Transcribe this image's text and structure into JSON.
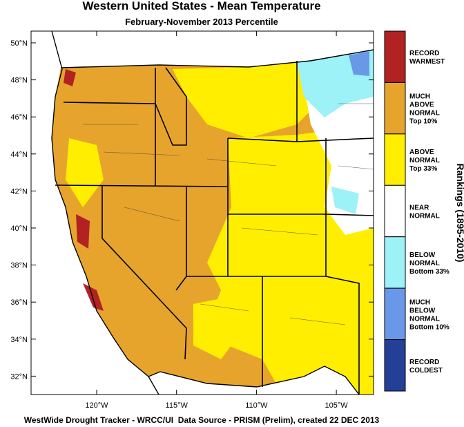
{
  "header": {
    "title": "Western United States - Mean Temperature",
    "subtitle": "February-November 2013 Percentile"
  },
  "map": {
    "lat_ticks": [
      "50°N",
      "48°N",
      "46°N",
      "44°N",
      "42°N",
      "40°N",
      "38°N",
      "36°N",
      "34°N",
      "32°N"
    ],
    "lon_ticks": [
      "120°W",
      "115°W",
      "110°W",
      "105°W"
    ]
  },
  "legend": {
    "title": "Rankings (1895-2010)",
    "items": [
      {
        "lines": [
          "RECORD",
          "WARMEST"
        ],
        "color": "#b22222"
      },
      {
        "lines": [
          "MUCH",
          "ABOVE",
          "NORMAL",
          "Top 10%"
        ],
        "color": "#e6a42c"
      },
      {
        "lines": [
          "ABOVE",
          "NORMAL",
          "Top 33%"
        ],
        "color": "#ffee00"
      },
      {
        "lines": [
          "NEAR",
          "NORMAL"
        ],
        "color": "#ffffff"
      },
      {
        "lines": [
          "BELOW",
          "NORMAL",
          "Bottom 33%"
        ],
        "color": "#9cf2f7"
      },
      {
        "lines": [
          "MUCH",
          "BELOW",
          "NORMAL",
          "Bottom 10%"
        ],
        "color": "#6a98e8"
      },
      {
        "lines": [
          "RECORD",
          "COLDEST"
        ],
        "color": "#243f96"
      }
    ]
  },
  "footer": "WestWide Drought Tracker - WRCC/UI  Data Source - PRISM (Prelim), created 22 DEC 2013"
}
